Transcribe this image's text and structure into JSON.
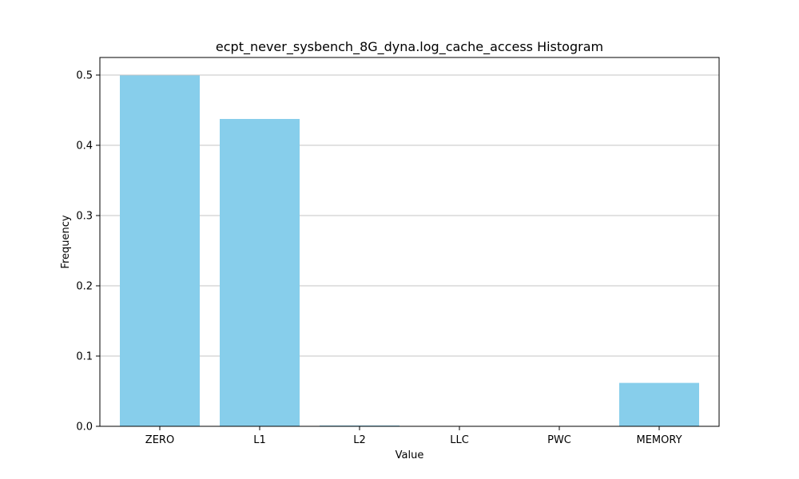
{
  "chart_data": {
    "type": "bar",
    "title": "ecpt_never_sysbench_8G_dyna.log_cache_access Histogram",
    "xlabel": "Value",
    "ylabel": "Frequency",
    "categories": [
      "ZERO",
      "L1",
      "L2",
      "LLC",
      "PWC",
      "MEMORY"
    ],
    "values": [
      0.4995,
      0.4375,
      0.0012,
      0.0,
      0.0,
      0.0618
    ],
    "ylim": [
      0,
      0.525
    ],
    "yticks": [
      0.0,
      0.1,
      0.2,
      0.3,
      0.4,
      0.5
    ],
    "ytick_labels": [
      "0.0",
      "0.1",
      "0.2",
      "0.3",
      "0.4",
      "0.5"
    ],
    "grid": "y",
    "bar_color": "#87CEEB",
    "gridline_color": "#b0b0b0"
  }
}
